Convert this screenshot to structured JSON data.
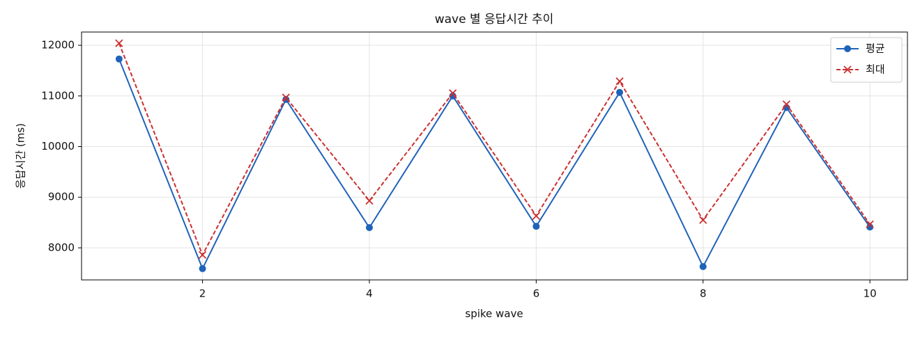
{
  "chart_data": {
    "type": "line",
    "title": "wave 별 응답시간 추이",
    "x_label": "spike wave",
    "y_label": "응답시간 (ms)",
    "x": [
      1,
      2,
      3,
      4,
      5,
      6,
      7,
      8,
      9,
      10
    ],
    "series": [
      {
        "name": "평균",
        "color": "#1f62b9",
        "marker": "circle",
        "dash": "solid",
        "values": [
          11730,
          7590,
          10930,
          8400,
          11000,
          8425,
          11070,
          7630,
          10770,
          8410
        ]
      },
      {
        "name": "최대",
        "color": "#cc2f2f",
        "marker": "x",
        "dash": "dashed",
        "values": [
          12040,
          7860,
          10970,
          8930,
          11055,
          8630,
          11290,
          8550,
          10835,
          8465
        ]
      }
    ],
    "xlim": [
      0.55,
      10.45
    ],
    "ylim": [
      7367,
      12262
    ],
    "xticks": [
      2,
      4,
      6,
      8,
      10
    ],
    "yticks": [
      8000,
      9000,
      10000,
      11000,
      12000
    ],
    "grid": true,
    "legend": "upper right"
  }
}
